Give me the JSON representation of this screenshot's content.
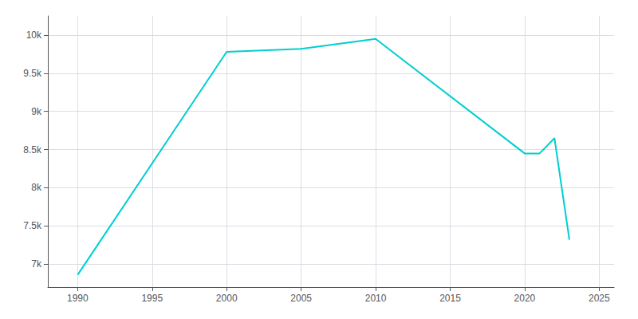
{
  "chart_data": {
    "type": "line",
    "x": [
      1990,
      2000,
      2005,
      2010,
      2020,
      2021,
      2022,
      2023
    ],
    "values": [
      6860,
      9780,
      9820,
      9950,
      8450,
      8450,
      8650,
      7320
    ],
    "color": "#00CED1",
    "xlim": [
      1988,
      2026
    ],
    "xticks": [
      1990,
      1995,
      2000,
      2005,
      2010,
      2015,
      2020,
      2025
    ],
    "ylim": [
      6700,
      10250
    ],
    "yticks": [
      {
        "value": 7000,
        "label": "7k"
      },
      {
        "value": 7500,
        "label": "7.5k"
      },
      {
        "value": 8000,
        "label": "8k"
      },
      {
        "value": 8500,
        "label": "8.5k"
      },
      {
        "value": 9000,
        "label": "9k"
      },
      {
        "value": 9500,
        "label": "9.5k"
      },
      {
        "value": 10000,
        "label": "10k"
      }
    ],
    "grid": true
  }
}
